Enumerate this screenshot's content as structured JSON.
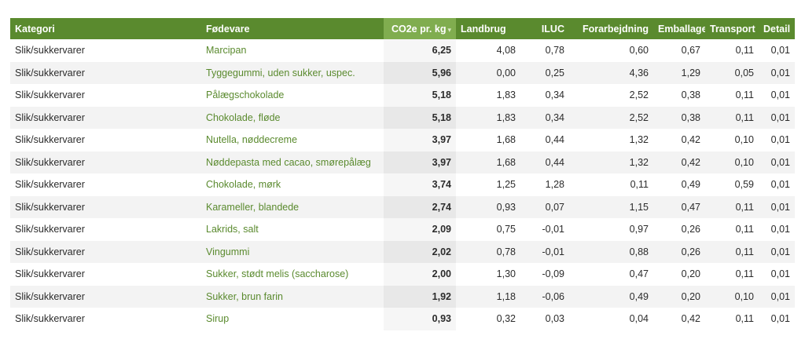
{
  "table": {
    "headers": {
      "kategori": "Kategori",
      "foedevare": "Fødevare",
      "co2": "CO2e pr. kg",
      "landbrug": "Landbrug",
      "iluc": "ILUC",
      "forarbejdning": "Forarbejdning",
      "emballage": "Emballage",
      "transport": "Transport",
      "detail": "Detail"
    },
    "sorted_column": "co2",
    "colors": {
      "header_bg": "#5a8a2e",
      "sorted_header_bg": "#80ad4f",
      "link": "#5a8a2e"
    },
    "rows": [
      [
        "Slik/sukkervarer",
        "Marcipan",
        "6,25",
        "4,08",
        "0,78",
        "0,60",
        "0,67",
        "0,11",
        "0,01"
      ],
      [
        "Slik/sukkervarer",
        "Tyggegummi, uden sukker, uspec.",
        "5,96",
        "0,00",
        "0,25",
        "4,36",
        "1,29",
        "0,05",
        "0,01"
      ],
      [
        "Slik/sukkervarer",
        "Pålægschokolade",
        "5,18",
        "1,83",
        "0,34",
        "2,52",
        "0,38",
        "0,11",
        "0,01"
      ],
      [
        "Slik/sukkervarer",
        "Chokolade, fløde",
        "5,18",
        "1,83",
        "0,34",
        "2,52",
        "0,38",
        "0,11",
        "0,01"
      ],
      [
        "Slik/sukkervarer",
        "Nutella, nøddecreme",
        "3,97",
        "1,68",
        "0,44",
        "1,32",
        "0,42",
        "0,10",
        "0,01"
      ],
      [
        "Slik/sukkervarer",
        "Nøddepasta med cacao, smørepålæg",
        "3,97",
        "1,68",
        "0,44",
        "1,32",
        "0,42",
        "0,10",
        "0,01"
      ],
      [
        "Slik/sukkervarer",
        "Chokolade, mørk",
        "3,74",
        "1,25",
        "1,28",
        "0,11",
        "0,49",
        "0,59",
        "0,01"
      ],
      [
        "Slik/sukkervarer",
        "Karameller, blandede",
        "2,74",
        "0,93",
        "0,07",
        "1,15",
        "0,47",
        "0,11",
        "0,01"
      ],
      [
        "Slik/sukkervarer",
        "Lakrids, salt",
        "2,09",
        "0,75",
        "-0,01",
        "0,97",
        "0,26",
        "0,11",
        "0,01"
      ],
      [
        "Slik/sukkervarer",
        "Vingummi",
        "2,02",
        "0,78",
        "-0,01",
        "0,88",
        "0,26",
        "0,11",
        "0,01"
      ],
      [
        "Slik/sukkervarer",
        "Sukker, stødt melis (saccharose)",
        "2,00",
        "1,30",
        "-0,09",
        "0,47",
        "0,20",
        "0,11",
        "0,01"
      ],
      [
        "Slik/sukkervarer",
        "Sukker, brun farin",
        "1,92",
        "1,18",
        "-0,06",
        "0,49",
        "0,20",
        "0,10",
        "0,01"
      ],
      [
        "Slik/sukkervarer",
        "Sirup",
        "0,93",
        "0,32",
        "0,03",
        "0,04",
        "0,42",
        "0,11",
        "0,01"
      ]
    ]
  }
}
